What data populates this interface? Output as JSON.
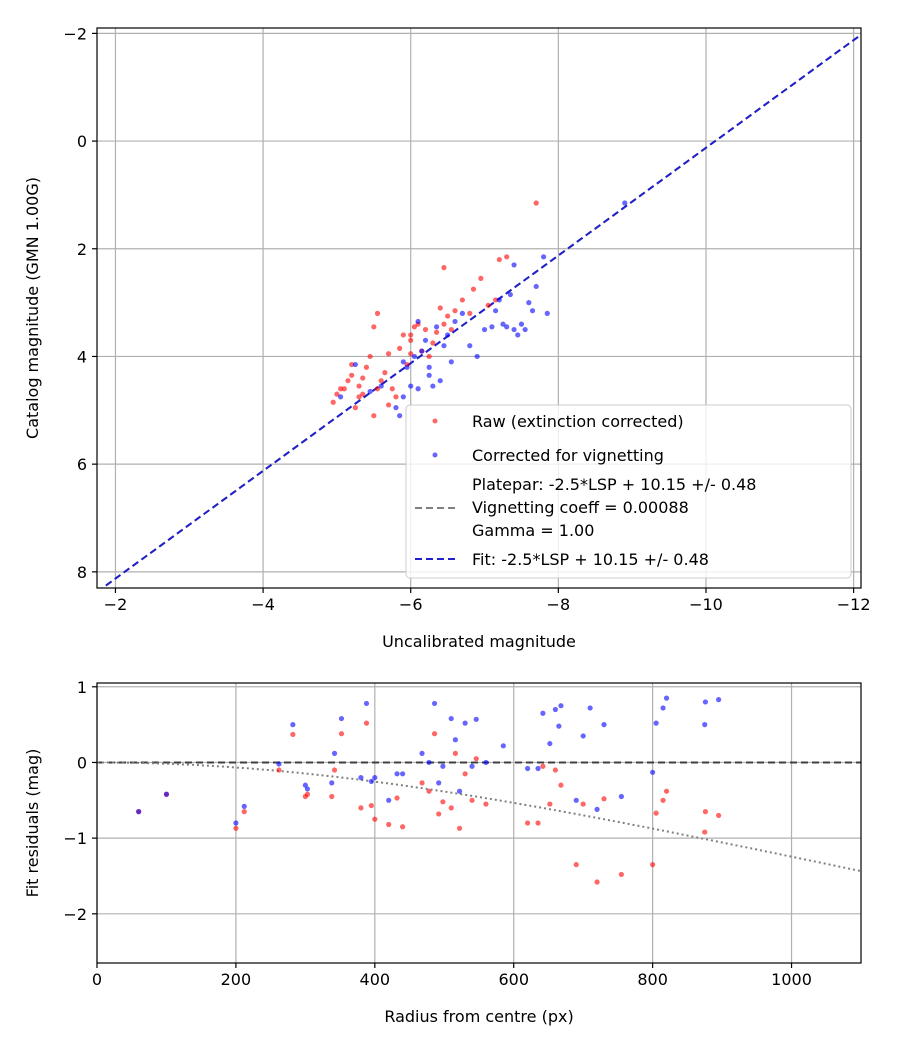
{
  "chart_data": [
    {
      "type": "scatter",
      "xlabel": "Uncalibrated magnitude",
      "ylabel": "Catalog magnitude (GMN 1.00G)",
      "xlim": [
        -1.75,
        -12.1
      ],
      "ylim": [
        8.3,
        -2.1
      ],
      "x_ticks": [
        -2,
        -4,
        -6,
        -8,
        -10,
        -12
      ],
      "y_ticks": [
        -2,
        0,
        2,
        4,
        6,
        8
      ],
      "x_tick_labels": [
        "−2",
        "−4",
        "−6",
        "−8",
        "−10",
        "−12"
      ],
      "y_tick_labels": [
        "−2",
        "0",
        "2",
        "4",
        "6",
        "8"
      ],
      "grid": true,
      "legend_position": "lower-right",
      "series": [
        {
          "name": "Raw (extinction corrected)",
          "color": "#ff0000",
          "points": [
            [
              -4.95,
              4.85
            ],
            [
              -5.0,
              4.7
            ],
            [
              -5.1,
              4.6
            ],
            [
              -5.15,
              4.45
            ],
            [
              -5.2,
              4.35
            ],
            [
              -5.2,
              4.15
            ],
            [
              -5.3,
              4.55
            ],
            [
              -5.35,
              4.4
            ],
            [
              -5.4,
              4.2
            ],
            [
              -5.25,
              4.95
            ],
            [
              -5.3,
              4.75
            ],
            [
              -5.45,
              4.0
            ],
            [
              -5.5,
              3.45
            ],
            [
              -5.55,
              3.2
            ],
            [
              -5.55,
              4.6
            ],
            [
              -5.6,
              4.45
            ],
            [
              -5.65,
              4.3
            ],
            [
              -5.7,
              3.95
            ],
            [
              -5.75,
              4.6
            ],
            [
              -5.8,
              4.75
            ],
            [
              -5.85,
              3.85
            ],
            [
              -5.9,
              3.6
            ],
            [
              -5.95,
              4.15
            ],
            [
              -6.0,
              3.95
            ],
            [
              -6.05,
              3.45
            ],
            [
              -5.7,
              4.9
            ],
            [
              -5.5,
              5.1
            ],
            [
              -6.1,
              3.4
            ],
            [
              -6.2,
              3.5
            ],
            [
              -6.3,
              3.75
            ],
            [
              -6.35,
              3.55
            ],
            [
              -6.4,
              3.1
            ],
            [
              -6.45,
              3.4
            ],
            [
              -6.5,
              3.25
            ],
            [
              -6.55,
              3.5
            ],
            [
              -6.6,
              3.15
            ],
            [
              -6.7,
              2.95
            ],
            [
              -6.8,
              3.2
            ],
            [
              -6.85,
              2.75
            ],
            [
              -6.95,
              2.55
            ],
            [
              -7.05,
              3.05
            ],
            [
              -7.15,
              2.95
            ],
            [
              -7.2,
              2.2
            ],
            [
              -7.3,
              2.15
            ],
            [
              -6.45,
              2.35
            ],
            [
              -6.0,
              3.7
            ],
            [
              -6.25,
              4.0
            ],
            [
              -5.35,
              4.7
            ],
            [
              -5.05,
              4.6
            ],
            [
              -7.7,
              1.15
            ],
            [
              -6.0,
              3.6
            ],
            [
              -6.15,
              3.9
            ]
          ]
        },
        {
          "name": "Corrected for vignetting",
          "color": "#0000ff",
          "points": [
            [
              -5.05,
              4.75
            ],
            [
              -5.25,
              4.15
            ],
            [
              -5.45,
              4.65
            ],
            [
              -5.6,
              4.55
            ],
            [
              -5.8,
              4.95
            ],
            [
              -5.85,
              5.1
            ],
            [
              -5.9,
              4.75
            ],
            [
              -5.95,
              4.2
            ],
            [
              -6.0,
              4.55
            ],
            [
              -6.05,
              4.0
            ],
            [
              -6.1,
              4.6
            ],
            [
              -6.15,
              3.9
            ],
            [
              -6.2,
              3.7
            ],
            [
              -6.25,
              4.35
            ],
            [
              -6.3,
              4.55
            ],
            [
              -6.35,
              3.45
            ],
            [
              -6.4,
              4.45
            ],
            [
              -6.45,
              3.8
            ],
            [
              -6.5,
              3.6
            ],
            [
              -6.55,
              4.1
            ],
            [
              -6.6,
              3.35
            ],
            [
              -6.7,
              3.2
            ],
            [
              -6.8,
              3.8
            ],
            [
              -6.9,
              4.0
            ],
            [
              -7.0,
              3.5
            ],
            [
              -7.1,
              3.45
            ],
            [
              -7.15,
              3.15
            ],
            [
              -7.2,
              2.95
            ],
            [
              -7.25,
              3.4
            ],
            [
              -7.3,
              3.45
            ],
            [
              -7.35,
              2.85
            ],
            [
              -7.4,
              3.5
            ],
            [
              -7.45,
              3.6
            ],
            [
              -7.5,
              3.4
            ],
            [
              -7.55,
              3.5
            ],
            [
              -7.6,
              3.0
            ],
            [
              -7.65,
              3.15
            ],
            [
              -7.7,
              2.7
            ],
            [
              -7.8,
              2.15
            ],
            [
              -7.85,
              3.2
            ],
            [
              -7.4,
              2.3
            ],
            [
              -8.9,
              1.15
            ],
            [
              -6.1,
              3.35
            ],
            [
              -5.9,
              4.1
            ],
            [
              -6.25,
              4.2
            ]
          ]
        },
        {
          "name": "Platepar: -2.5*LSP + 10.15 +/- 0.48\nVignetting coeff = 0.00088\nGamma = 1.00",
          "color": "#808080",
          "style": "dashed",
          "line": [
            [
              -1.75,
              8.375
            ],
            [
              -12.1,
              -1.975
            ]
          ]
        },
        {
          "name": "Fit: -2.5*LSP + 10.15 +/- 0.48",
          "color": "#2020cc",
          "style": "dashed",
          "line": [
            [
              -1.75,
              8.375
            ],
            [
              -12.1,
              -1.975
            ]
          ]
        }
      ],
      "legend": {
        "raw_label": "Raw (extinction corrected)",
        "corr_label": "Corrected for vignetting",
        "platepar_line1": "Platepar: -2.5*LSP + 10.15 +/- 0.48",
        "platepar_line2": "Vignetting coeff = 0.00088",
        "platepar_line3": "Gamma = 1.00",
        "fit_label": "Fit: -2.5*LSP + 10.15 +/- 0.48"
      }
    },
    {
      "type": "scatter",
      "xlabel": "Radius from centre (px)",
      "ylabel": "Fit residuals (mag)",
      "xlim": [
        0,
        1100
      ],
      "ylim": [
        -2.65,
        1.05
      ],
      "x_ticks": [
        0,
        200,
        400,
        600,
        800,
        1000
      ],
      "y_ticks": [
        1,
        0,
        -1,
        -2
      ],
      "x_tick_labels": [
        "0",
        "200",
        "400",
        "600",
        "800",
        "1000"
      ],
      "y_tick_labels": [
        "1",
        "0",
        "−1",
        "−2"
      ],
      "grid": true,
      "series": [
        {
          "name": "Raw (extinction corrected)",
          "color": "#ff0000",
          "points": [
            [
              60,
              -0.65
            ],
            [
              100,
              -0.42
            ],
            [
              200,
              -0.87
            ],
            [
              212,
              -0.65
            ],
            [
              262,
              -0.1
            ],
            [
              282,
              0.37
            ],
            [
              300,
              -0.45
            ],
            [
              303,
              -0.42
            ],
            [
              338,
              -0.45
            ],
            [
              342,
              -0.1
            ],
            [
              352,
              0.38
            ],
            [
              380,
              -0.6
            ],
            [
              388,
              0.52
            ],
            [
              395,
              -0.57
            ],
            [
              400,
              -0.75
            ],
            [
              420,
              -0.82
            ],
            [
              432,
              -0.47
            ],
            [
              440,
              -0.85
            ],
            [
              468,
              -0.27
            ],
            [
              478,
              -0.38
            ],
            [
              486,
              0.38
            ],
            [
              492,
              -0.68
            ],
            [
              498,
              -0.52
            ],
            [
              510,
              -0.6
            ],
            [
              516,
              0.12
            ],
            [
              522,
              -0.87
            ],
            [
              530,
              -0.15
            ],
            [
              540,
              -0.5
            ],
            [
              546,
              0.05
            ],
            [
              560,
              -0.55
            ],
            [
              620,
              -0.8
            ],
            [
              635,
              -0.8
            ],
            [
              642,
              -0.05
            ],
            [
              652,
              -0.55
            ],
            [
              660,
              -0.1
            ],
            [
              668,
              -0.3
            ],
            [
              690,
              -1.35
            ],
            [
              700,
              -0.55
            ],
            [
              720,
              -1.58
            ],
            [
              730,
              -0.48
            ],
            [
              755,
              -1.48
            ],
            [
              800,
              -1.35
            ],
            [
              805,
              -0.67
            ],
            [
              815,
              -0.5
            ],
            [
              820,
              -0.38
            ],
            [
              875,
              -0.92
            ],
            [
              876,
              -0.65
            ],
            [
              895,
              -0.7
            ]
          ]
        },
        {
          "name": "Corrected for vignetting",
          "color": "#0000ff",
          "points": [
            [
              60,
              -0.65
            ],
            [
              100,
              -0.42
            ],
            [
              200,
              -0.8
            ],
            [
              212,
              -0.58
            ],
            [
              262,
              -0.02
            ],
            [
              282,
              0.5
            ],
            [
              300,
              -0.3
            ],
            [
              303,
              -0.35
            ],
            [
              338,
              -0.27
            ],
            [
              342,
              0.12
            ],
            [
              352,
              0.58
            ],
            [
              380,
              -0.2
            ],
            [
              388,
              0.78
            ],
            [
              395,
              -0.25
            ],
            [
              400,
              -0.2
            ],
            [
              420,
              -0.5
            ],
            [
              432,
              -0.15
            ],
            [
              440,
              -0.15
            ],
            [
              468,
              0.12
            ],
            [
              478,
              0.0
            ],
            [
              486,
              0.78
            ],
            [
              492,
              -0.27
            ],
            [
              498,
              -0.05
            ],
            [
              510,
              0.58
            ],
            [
              516,
              0.3
            ],
            [
              522,
              -0.38
            ],
            [
              530,
              0.52
            ],
            [
              540,
              -0.05
            ],
            [
              546,
              0.57
            ],
            [
              560,
              0.0
            ],
            [
              620,
              -0.08
            ],
            [
              635,
              -0.08
            ],
            [
              642,
              0.65
            ],
            [
              652,
              0.25
            ],
            [
              660,
              0.7
            ],
            [
              668,
              0.75
            ],
            [
              690,
              -0.5
            ],
            [
              700,
              0.35
            ],
            [
              720,
              -0.62
            ],
            [
              730,
              0.5
            ],
            [
              755,
              -0.45
            ],
            [
              800,
              -0.13
            ],
            [
              805,
              0.52
            ],
            [
              815,
              0.72
            ],
            [
              820,
              0.85
            ],
            [
              875,
              0.5
            ],
            [
              876,
              0.8
            ],
            [
              895,
              0.83
            ],
            [
              665,
              0.48
            ],
            [
              710,
              0.72
            ],
            [
              585,
              0.22
            ]
          ]
        },
        {
          "name": "",
          "color": "#404040",
          "style": "dashed",
          "line": [
            [
              0,
              0
            ],
            [
              1100,
              0
            ]
          ]
        },
        {
          "name": "",
          "color": "#808080",
          "style": "dotted",
          "curve": "vignetting",
          "vignetting_coeff": 0.00088
        }
      ]
    }
  ]
}
